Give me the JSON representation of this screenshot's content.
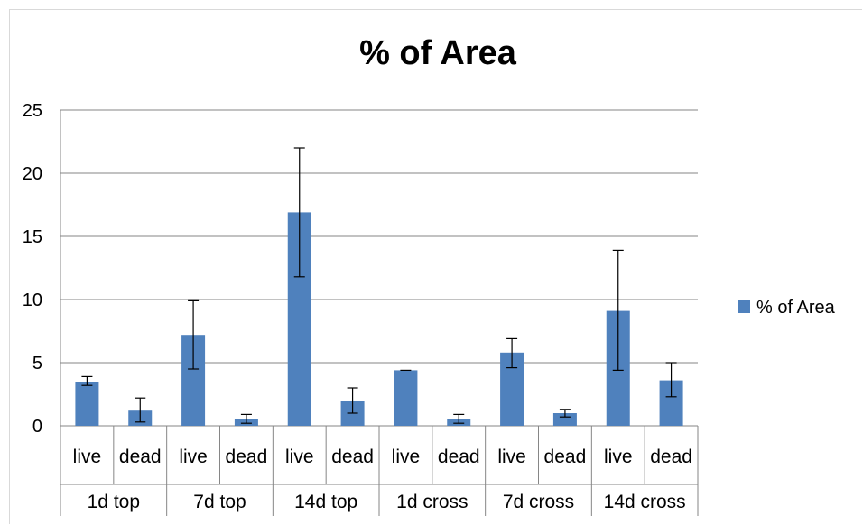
{
  "chart_data": {
    "type": "bar",
    "title": "% of Area",
    "ylim": [
      0,
      25
    ],
    "yticks": [
      0,
      5,
      10,
      15,
      20,
      25
    ],
    "grid": true,
    "legend_position": "right",
    "color": "#4f81bd",
    "groups": [
      "1d top",
      "7d top",
      "14d top",
      "1d cross",
      "7d cross",
      "14d cross"
    ],
    "categories": [
      "live",
      "dead",
      "live",
      "dead",
      "live",
      "dead",
      "live",
      "dead",
      "live",
      "dead",
      "live",
      "dead"
    ],
    "series": [
      {
        "name": "% of Area",
        "values": [
          3.5,
          1.2,
          7.2,
          0.5,
          16.9,
          2.0,
          4.4,
          0.5,
          5.8,
          1.0,
          9.1,
          3.6
        ],
        "error_low": [
          3.2,
          0.3,
          4.5,
          0.2,
          11.8,
          1.0,
          4.4,
          0.2,
          4.6,
          0.7,
          4.4,
          2.3
        ],
        "error_high": [
          3.9,
          2.2,
          9.9,
          0.9,
          22.0,
          3.0,
          4.4,
          0.9,
          6.9,
          1.3,
          13.9,
          5.0
        ]
      }
    ]
  }
}
